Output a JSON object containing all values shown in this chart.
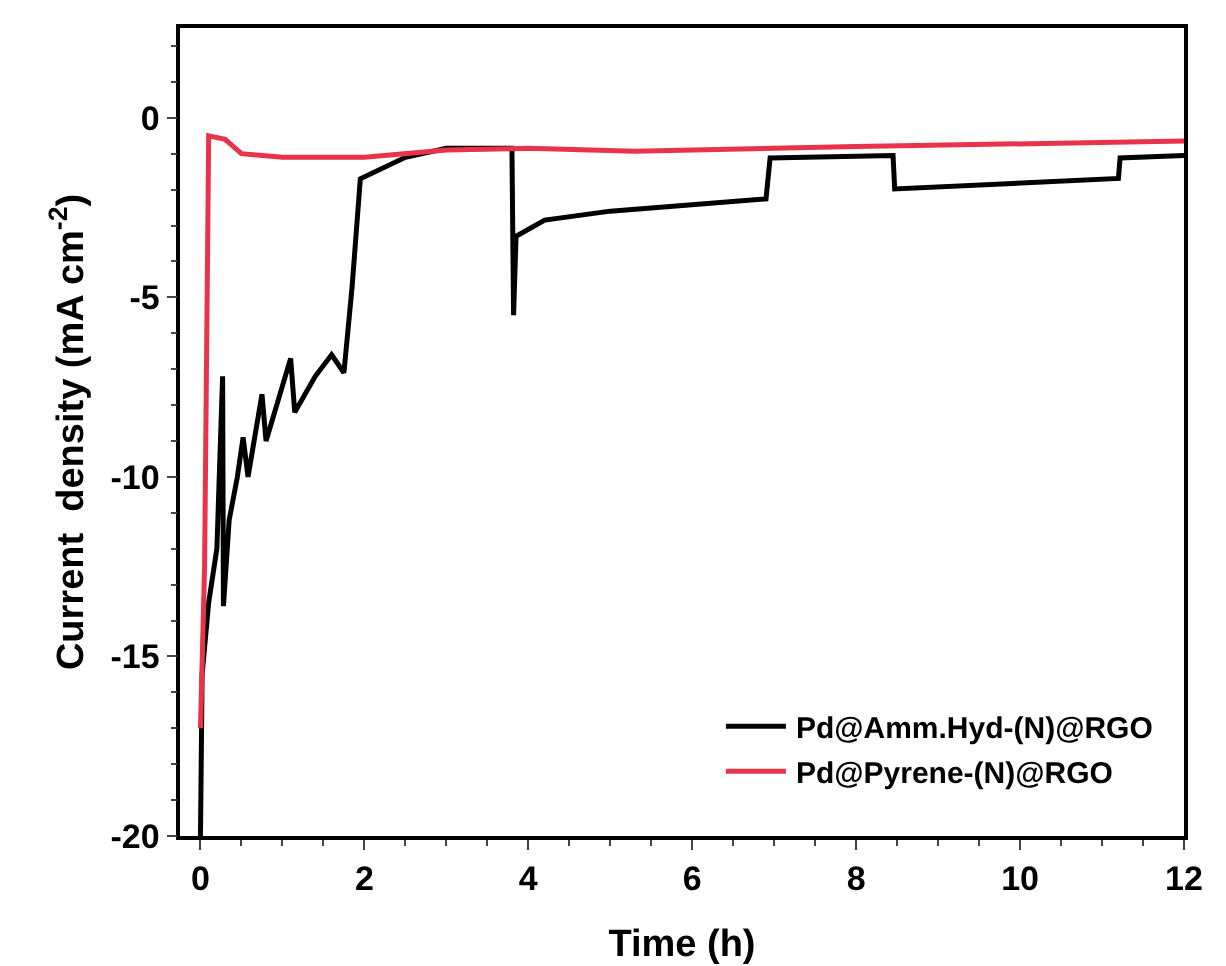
{
  "chart_data": {
    "type": "line",
    "xlabel": "Time (h)",
    "ylabel": "Current  density (mA cm$^{-2}$)",
    "xlim": [
      -0.25,
      12
    ],
    "ylim": [
      -20,
      2.5
    ],
    "xticks": [
      0,
      2,
      4,
      6,
      8,
      10,
      12
    ],
    "yticks": [
      -20,
      -15,
      -10,
      -5,
      0
    ],
    "grid": false,
    "legend": "bottom right",
    "marker": "none",
    "line_style": "solid",
    "series": [
      {
        "name": "Pd@Amm.Hyd-(N)@RGO",
        "color": "#000000",
        "x": [
          0,
          0.02,
          0.1,
          0.2,
          0.27,
          0.28,
          0.35,
          0.45,
          0.52,
          0.58,
          0.75,
          0.8,
          1.1,
          1.15,
          1.4,
          1.6,
          1.75,
          1.85,
          1.95,
          2.5,
          3,
          3.8,
          3.82,
          3.85,
          4.2,
          5,
          6.9,
          6.95,
          8.45,
          8.47,
          11.2,
          11.22,
          12
        ],
        "values": [
          -20,
          -15.5,
          -13.5,
          -12,
          -7.2,
          -13.6,
          -11.2,
          -10,
          -8.9,
          -10,
          -7.7,
          -9,
          -6.7,
          -8.2,
          -7.2,
          -6.6,
          -7.1,
          -4.7,
          -1.7,
          -1.1,
          -0.85,
          -0.85,
          -5.5,
          -3.3,
          -2.85,
          -2.6,
          -2.26,
          -1.12,
          -1.05,
          -1.98,
          -1.69,
          -1.12,
          -1.05
        ]
      },
      {
        "name": "Pd@Pyrene-(N)@RGO",
        "color": "#e8334a",
        "x": [
          0,
          0.05,
          0.1,
          0.3,
          0.5,
          1,
          2,
          3,
          4,
          5.3,
          8,
          12
        ],
        "values": [
          -17,
          -12.5,
          -0.5,
          -0.6,
          -1,
          -1.1,
          -1.1,
          -0.9,
          -0.85,
          -0.93,
          -0.8,
          -0.65
        ]
      }
    ]
  }
}
